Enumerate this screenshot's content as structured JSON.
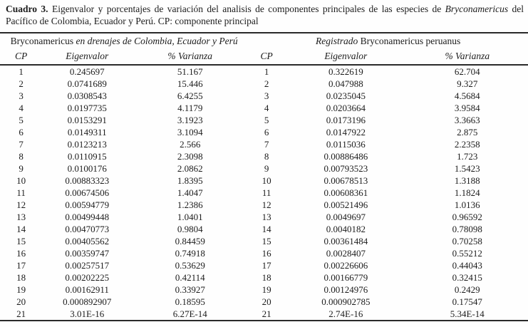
{
  "title": {
    "label": "Cuadro 3.",
    "text_mid": " Eigenvalor y porcentajes de variación del analisis de componentes principales de las especies de ",
    "species_italic": "Bryconamericus",
    "text_end": " del Pacífico de Colombia, Ecuador y Perú. CP: componente principal"
  },
  "table": {
    "group_headers": {
      "left": {
        "roman": "Bryconamericus",
        "italic": " en drenajes de Colombia, Ecuador y Perú"
      },
      "right": {
        "italic": "Registrado",
        "roman": " Bryconamericus peruanus"
      }
    },
    "column_headers": [
      "CP",
      "Eigenvalor",
      "% Varianza",
      "CP",
      "Eigenvalor",
      "% Varianza"
    ],
    "rows": [
      [
        "1",
        "0.245697",
        "51.167",
        "1",
        "0.322619",
        "62.704"
      ],
      [
        "2",
        "0.0741689",
        "15.446",
        "2",
        "0.047988",
        "9.327"
      ],
      [
        "3",
        "0.0308543",
        "6.4255",
        "3",
        "0.0235045",
        "4.5684"
      ],
      [
        "4",
        "0.0197735",
        "4.1179",
        "4",
        "0.0203664",
        "3.9584"
      ],
      [
        "5",
        "0.0153291",
        "3.1923",
        "5",
        "0.0173196",
        "3.3663"
      ],
      [
        "6",
        "0.0149311",
        "3.1094",
        "6",
        "0.0147922",
        "2.875"
      ],
      [
        "7",
        "0.0123213",
        "2.566",
        "7",
        "0.0115036",
        "2.2358"
      ],
      [
        "8",
        "0.0110915",
        "2.3098",
        "8",
        "0.00886486",
        "1.723"
      ],
      [
        "9",
        "0.0100176",
        "2.0862",
        "9",
        "0.00793523",
        "1.5423"
      ],
      [
        "10",
        "0.00883323",
        "1.8395",
        "10",
        "0.00678513",
        "1.3188"
      ],
      [
        "11",
        "0.00674506",
        "1.4047",
        "11",
        "0.00608361",
        "1.1824"
      ],
      [
        "12",
        "0.00594779",
        "1.2386",
        "12",
        "0.00521496",
        "1.0136"
      ],
      [
        "13",
        "0.00499448",
        "1.0401",
        "13",
        "0.0049697",
        "0.96592"
      ],
      [
        "14",
        "0.00470773",
        "0.9804",
        "14",
        "0.0040182",
        "0.78098"
      ],
      [
        "15",
        "0.00405562",
        "0.84459",
        "15",
        "0.00361484",
        "0.70258"
      ],
      [
        "16",
        "0.00359747",
        "0.74918",
        "16",
        "0.0028407",
        "0.55212"
      ],
      [
        "17",
        "0.00257517",
        "0.53629",
        "17",
        "0.00226606",
        "0.44043"
      ],
      [
        "18",
        "0.00202225",
        "0.42114",
        "18",
        "0.00166779",
        "0.32415"
      ],
      [
        "19",
        "0.00162911",
        "0.33927",
        "19",
        "0.00124976",
        "0.2429"
      ],
      [
        "20",
        "0.000892907",
        "0.18595",
        "20",
        "0.000902785",
        "0.17547"
      ],
      [
        "21",
        "3.01E-16",
        "6.27E-14",
        "21",
        "2.74E-16",
        "5.34E-14"
      ]
    ]
  },
  "chart_data": {
    "type": "table",
    "title": "Cuadro 3. Eigenvalor y porcentajes de variación del analisis de componentes principales de las especies de Bryconamericus del Pacífico de Colombia, Ecuador y Perú. CP: componente principal",
    "groups": [
      "Bryconamericus en drenajes de Colombia, Ecuador y Perú",
      "Registrado Bryconamericus peruanus"
    ],
    "columns": [
      "CP",
      "Eigenvalor",
      "% Varianza",
      "CP",
      "Eigenvalor",
      "% Varianza"
    ],
    "series": [
      {
        "name": "Colombia-Ecuador-Peru Eigenvalor",
        "values": [
          0.245697,
          0.0741689,
          0.0308543,
          0.0197735,
          0.0153291,
          0.0149311,
          0.0123213,
          0.0110915,
          0.0100176,
          0.00883323,
          0.00674506,
          0.00594779,
          0.00499448,
          0.00470773,
          0.00405562,
          0.00359747,
          0.00257517,
          0.00202225,
          0.00162911,
          0.000892907,
          3.01e-16
        ]
      },
      {
        "name": "Colombia-Ecuador-Peru % Varianza",
        "values": [
          51.167,
          15.446,
          6.4255,
          4.1179,
          3.1923,
          3.1094,
          2.566,
          2.3098,
          2.0862,
          1.8395,
          1.4047,
          1.2386,
          1.0401,
          0.9804,
          0.84459,
          0.74918,
          0.53629,
          0.42114,
          0.33927,
          0.18595,
          6.27e-14
        ]
      },
      {
        "name": "Bryconamericus peruanus Eigenvalor",
        "values": [
          0.322619,
          0.047988,
          0.0235045,
          0.0203664,
          0.0173196,
          0.0147922,
          0.0115036,
          0.00886486,
          0.00793523,
          0.00678513,
          0.00608361,
          0.00521496,
          0.0049697,
          0.0040182,
          0.00361484,
          0.0028407,
          0.00226606,
          0.00166779,
          0.00124976,
          0.000902785,
          2.74e-16
        ]
      },
      {
        "name": "Bryconamericus peruanus % Varianza",
        "values": [
          62.704,
          9.327,
          4.5684,
          3.9584,
          3.3663,
          2.875,
          2.2358,
          1.723,
          1.5423,
          1.3188,
          1.1824,
          1.0136,
          0.96592,
          0.78098,
          0.70258,
          0.55212,
          0.44043,
          0.32415,
          0.2429,
          0.17547,
          5.34e-14
        ]
      }
    ],
    "x": [
      1,
      2,
      3,
      4,
      5,
      6,
      7,
      8,
      9,
      10,
      11,
      12,
      13,
      14,
      15,
      16,
      17,
      18,
      19,
      20,
      21
    ]
  }
}
